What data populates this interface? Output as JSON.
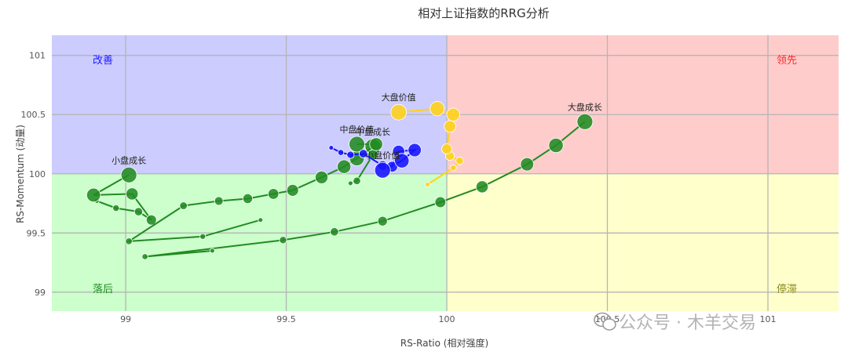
{
  "chart_data": {
    "type": "scatter",
    "title": "相对上证指数的RRG分析",
    "xlabel": "RS-Ratio (相对强度)",
    "ylabel": "RS-Momentum (动量)",
    "xlim": [
      98.77,
      101.22
    ],
    "ylim": [
      98.84,
      101.17
    ],
    "x_ticks": [
      {
        "value": 99,
        "label": "99"
      },
      {
        "value": 99.5,
        "label": "99.5"
      },
      {
        "value": 100,
        "label": "100"
      },
      {
        "value": 100.5,
        "label": "100.5"
      },
      {
        "value": 101,
        "label": "101"
      }
    ],
    "y_ticks": [
      {
        "value": 99,
        "label": "99"
      },
      {
        "value": 99.5,
        "label": "99.5"
      },
      {
        "value": 100,
        "label": "100"
      },
      {
        "value": 100.5,
        "label": "100.5"
      },
      {
        "value": 101,
        "label": "101"
      }
    ],
    "center": [
      100,
      100
    ],
    "grid": true,
    "quadrants": [
      {
        "name": "改善",
        "fill": "#ccccff",
        "text_color": "#1a1aff",
        "corner": "top-left"
      },
      {
        "name": "领先",
        "fill": "#ffcccc",
        "text_color": "#ff2a2a",
        "corner": "top-right"
      },
      {
        "name": "落后",
        "fill": "#ccffcc",
        "text_color": "#1f8a1f",
        "corner": "bottom-left"
      },
      {
        "name": "停滞",
        "fill": "#ffffcc",
        "text_color": "#8a8a1a",
        "corner": "bottom-right"
      }
    ],
    "series": [
      {
        "name": "小盘成长",
        "color": "#228b22",
        "points": [
          [
            98.91,
            99.77
          ],
          [
            98.97,
            99.71
          ],
          [
            99.04,
            99.68
          ],
          [
            99.08,
            99.61
          ],
          [
            99.02,
            99.83
          ],
          [
            98.9,
            99.82
          ],
          [
            99.01,
            99.99
          ]
        ]
      },
      {
        "name": "中盘成长",
        "color": "#228b22",
        "points": [
          [
            99.42,
            99.61
          ],
          [
            99.24,
            99.47
          ],
          [
            99.01,
            99.43
          ],
          [
            99.18,
            99.73
          ],
          [
            99.29,
            99.77
          ],
          [
            99.38,
            99.79
          ],
          [
            99.46,
            99.83
          ],
          [
            99.52,
            99.86
          ],
          [
            99.61,
            99.97
          ],
          [
            99.68,
            100.06
          ],
          [
            99.72,
            100.13
          ],
          [
            99.77,
            100.23
          ]
        ]
      },
      {
        "name": "大盘成长",
        "color": "#228b22",
        "points": [
          [
            99.27,
            99.35
          ],
          [
            99.06,
            99.3
          ],
          [
            99.49,
            99.44
          ],
          [
            99.65,
            99.51
          ],
          [
            99.8,
            99.6
          ],
          [
            99.98,
            99.76
          ],
          [
            100.11,
            99.89
          ],
          [
            100.25,
            100.08
          ],
          [
            100.34,
            100.24
          ],
          [
            100.43,
            100.44
          ]
        ]
      },
      {
        "name": "中盘价值",
        "color": "#228b22",
        "points": [
          [
            99.7,
            99.92
          ],
          [
            99.72,
            99.94
          ],
          [
            99.77,
            100.16
          ],
          [
            99.78,
            100.25
          ],
          [
            99.72,
            100.25
          ]
        ]
      },
      {
        "name": "小盘价值",
        "color": "#1515ff",
        "points": [
          [
            99.64,
            100.22
          ],
          [
            99.67,
            100.18
          ],
          [
            99.7,
            100.16
          ],
          [
            99.74,
            100.17
          ],
          [
            99.8,
            100.07
          ],
          [
            99.83,
            100.06
          ],
          [
            99.85,
            100.19
          ],
          [
            99.9,
            100.2
          ],
          [
            99.86,
            100.11
          ],
          [
            99.8,
            100.03
          ]
        ]
      },
      {
        "name": "大盘价值",
        "color": "#ffd21a",
        "points": [
          [
            99.94,
            99.91
          ],
          [
            100.02,
            100.05
          ],
          [
            100.04,
            100.11
          ],
          [
            100.01,
            100.15
          ],
          [
            100.0,
            100.21
          ],
          [
            100.01,
            100.4
          ],
          [
            100.02,
            100.5
          ],
          [
            99.97,
            100.55
          ],
          [
            99.85,
            100.52
          ]
        ]
      }
    ]
  },
  "watermark": {
    "text": "公众号 · 木羊交易"
  }
}
